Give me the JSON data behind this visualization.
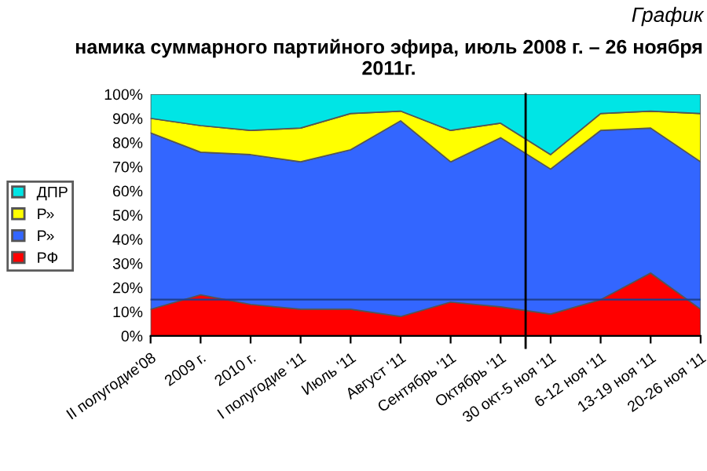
{
  "chart_data": {
    "type": "area",
    "stacked": true,
    "title": "намика суммарного партийного эфира, июль 2008 г. – 26 ноября 2011г.",
    "annotations": [
      "График"
    ],
    "categories": [
      "II полугодие'08",
      "2009 г.",
      "2010 г.",
      "I полугодие '11",
      "Июль '11",
      "Август '11",
      "Сентябрь '11",
      "Октябрь '11",
      "30 окт-5 ноя '11",
      "6-12 ноя '11",
      "13-19 ноя '11",
      "20-26 ноя '11"
    ],
    "series": [
      {
        "name": "РФ",
        "color": "#ff0000",
        "values": [
          11,
          17,
          13,
          11,
          11,
          8,
          14,
          12,
          9,
          15,
          26,
          11
        ]
      },
      {
        "name": "Р»",
        "color": "#3366ff",
        "values": [
          73,
          59,
          62,
          61,
          66,
          81,
          58,
          70,
          60,
          70,
          60,
          61
        ]
      },
      {
        "name": "Р»",
        "color": "#ffff00",
        "values": [
          6,
          11,
          10,
          14,
          15,
          4,
          13,
          6,
          6,
          7,
          7,
          20
        ]
      },
      {
        "name": "ДПР",
        "color": "#00e5e5",
        "values": [
          10,
          13,
          15,
          14,
          8,
          7,
          15,
          12,
          25,
          8,
          7,
          8
        ]
      }
    ],
    "ylim": [
      0,
      100
    ],
    "yticks": [
      {
        "value": 0,
        "label": "0%"
      },
      {
        "value": 10,
        "label": "10%"
      },
      {
        "value": 20,
        "label": "20%"
      },
      {
        "value": 30,
        "label": "30%"
      },
      {
        "value": 40,
        "label": "40%"
      },
      {
        "value": 50,
        "label": "50%"
      },
      {
        "value": 60,
        "label": "60%"
      },
      {
        "value": 70,
        "label": "70%"
      },
      {
        "value": 80,
        "label": "80%"
      },
      {
        "value": 90,
        "label": "90%"
      },
      {
        "value": 100,
        "label": "100%"
      }
    ],
    "ref_lines": [
      {
        "axis": "y",
        "value": 15,
        "color": "#1f3f8f"
      }
    ],
    "legend": "left",
    "grid": false
  }
}
